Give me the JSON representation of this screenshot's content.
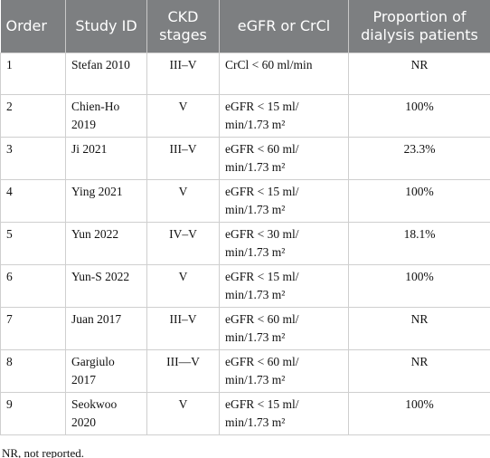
{
  "table": {
    "header": [
      "Order",
      "Study ID",
      "CKD stages",
      "eGFR or CrCl",
      "Proportion of dialysis patients"
    ],
    "rows": [
      [
        "1",
        "Stefan 2010",
        "III–V",
        "CrCl < 60 ml/min",
        "NR"
      ],
      [
        "2",
        "Chien-Ho 2019",
        "V",
        "eGFR < 15 ml/ min/1.73 m²",
        "100%"
      ],
      [
        "3",
        "Ji 2021",
        "III–V",
        "eGFR < 60 ml/ min/1.73 m²",
        "23.3%"
      ],
      [
        "4",
        "Ying 2021",
        "V",
        "eGFR < 15 ml/ min/1.73 m²",
        "100%"
      ],
      [
        "5",
        "Yun 2022",
        "IV–V",
        "eGFR < 30 ml/ min/1.73 m²",
        "18.1%"
      ],
      [
        "6",
        "Yun-S 2022",
        "V",
        "eGFR < 15 ml/ min/1.73 m²",
        "100%"
      ],
      [
        "7",
        "Juan 2017",
        "III–V",
        "eGFR < 60 ml/ min/1.73 m²",
        "NR"
      ],
      [
        "8",
        "Gargiulo 2017",
        "III—V",
        "eGFR < 60 ml/ min/1.73 m²",
        "NR"
      ],
      [
        "9",
        "Seokwoo 2020",
        "V",
        "eGFR < 15 ml/ min/1.73 m²",
        "100%"
      ]
    ]
  },
  "footnote": "NR, not reported."
}
